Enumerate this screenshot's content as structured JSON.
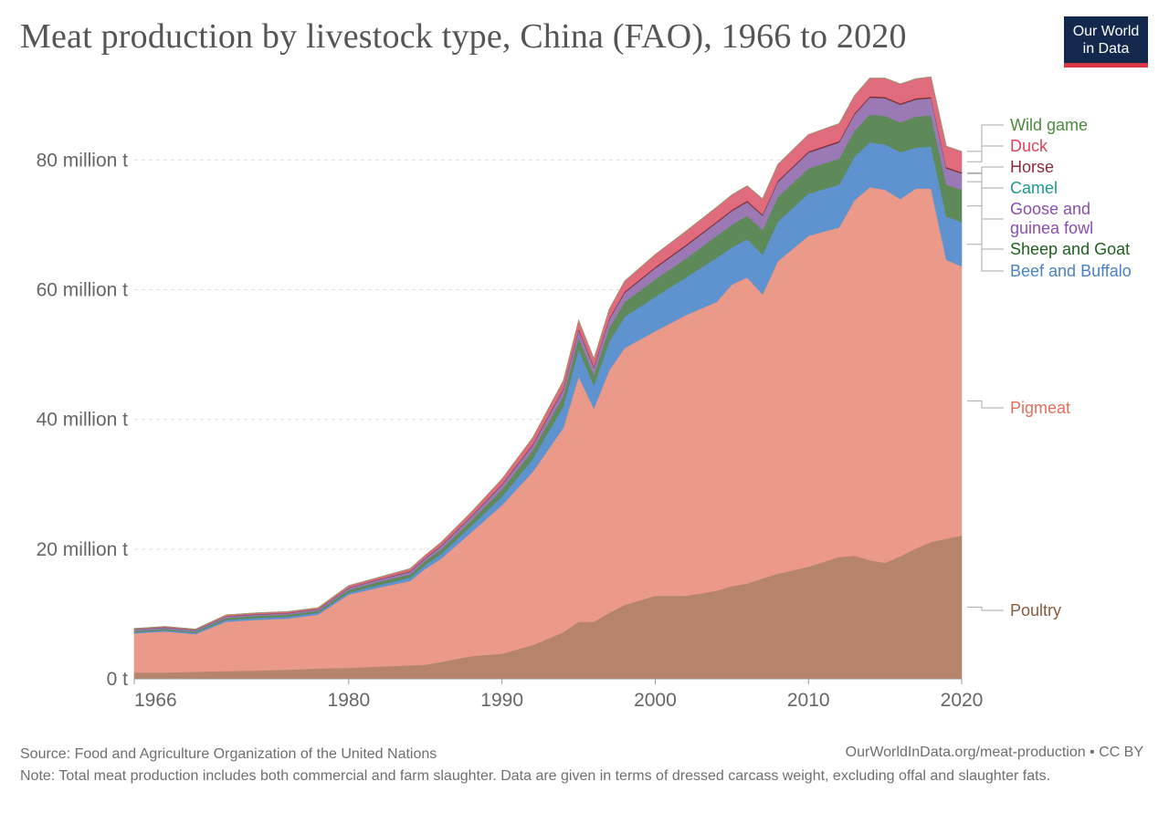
{
  "title": "Meat production by livestock type, China (FAO), 1966 to 2020",
  "logo": {
    "line1": "Our World",
    "line2": "in Data",
    "bg_color": "#12284c",
    "bar_color": "#dc3545"
  },
  "footer": {
    "source": "Source: Food and Agriculture Organization of the United Nations",
    "url": "OurWorldInData.org/meat-production • CC BY",
    "note": "Note: Total meat production includes both commercial and farm slaughter. Data are given in terms of dressed carcass weight, excluding offal and slaughter fats."
  },
  "chart_data": {
    "type": "area",
    "stacked": true,
    "title": "Meat production by livestock type, China (FAO), 1966 to 2020",
    "xlim": [
      1966,
      2020
    ],
    "ylim": [
      0,
      92
    ],
    "x_ticks": [
      1966,
      1980,
      1990,
      2000,
      2010,
      2020
    ],
    "y_ticks": [
      {
        "value": 0,
        "label": "0 t"
      },
      {
        "value": 20,
        "label": "20 million t"
      },
      {
        "value": 40,
        "label": "40 million t"
      },
      {
        "value": 60,
        "label": "60 million t"
      },
      {
        "value": 80,
        "label": "80 million t"
      }
    ],
    "grid": "horizontal",
    "legend": "right, labels at series ends",
    "x": [
      1966,
      1968,
      1970,
      1972,
      1974,
      1976,
      1978,
      1980,
      1982,
      1984,
      1985,
      1986,
      1988,
      1990,
      1992,
      1994,
      1995,
      1996,
      1997,
      1998,
      2000,
      2002,
      2004,
      2005,
      2006,
      2007,
      2008,
      2010,
      2012,
      2013,
      2014,
      2015,
      2016,
      2017,
      2018,
      2019,
      2020
    ],
    "series": [
      {
        "name": "Poultry",
        "color": "#b5846a",
        "label_color": "#8c5a3c",
        "values": [
          1.0,
          1.0,
          1.1,
          1.2,
          1.3,
          1.4,
          1.6,
          1.7,
          1.9,
          2.1,
          2.2,
          2.6,
          3.5,
          3.9,
          5.2,
          7.2,
          8.8,
          8.8,
          10.2,
          11.4,
          12.8,
          12.8,
          13.6,
          14.3,
          14.7,
          15.5,
          16.2,
          17.3,
          18.8,
          19.0,
          18.3,
          17.9,
          18.9,
          20.1,
          21.1,
          21.6,
          22.1
        ]
      },
      {
        "name": "Pigmeat",
        "color": "#eb9a8a",
        "label_color": "#e0705b",
        "values": [
          6.0,
          6.3,
          5.8,
          7.6,
          7.8,
          7.9,
          8.3,
          11.3,
          12.2,
          13.0,
          14.8,
          15.9,
          19.1,
          22.9,
          26.7,
          31.5,
          37.8,
          32.9,
          37.4,
          39.6,
          40.8,
          43.3,
          44.5,
          46.5,
          47.2,
          43.8,
          48.2,
          51.0,
          50.8,
          54.8,
          57.5,
          57.5,
          55.1,
          55.5,
          54.5,
          43.0,
          41.5
        ]
      },
      {
        "name": "Beef and Buffalo",
        "color": "#5f93cf",
        "label_color": "#4a82c5",
        "values": [
          0.2,
          0.2,
          0.2,
          0.3,
          0.3,
          0.3,
          0.3,
          0.3,
          0.4,
          0.5,
          0.6,
          0.7,
          1.0,
          1.3,
          2.0,
          3.3,
          4.2,
          3.6,
          4.4,
          4.8,
          5.3,
          5.8,
          6.8,
          5.7,
          5.9,
          6.1,
          6.1,
          6.5,
          6.6,
          6.7,
          6.9,
          7.0,
          7.2,
          6.3,
          6.5,
          6.7,
          6.8
        ]
      },
      {
        "name": "Sheep and Goat",
        "color": "#5e8a5a",
        "label_color": "#1f5f1f",
        "values": [
          0.2,
          0.2,
          0.2,
          0.3,
          0.3,
          0.3,
          0.3,
          0.4,
          0.5,
          0.5,
          0.6,
          0.7,
          0.8,
          1.1,
          1.3,
          1.6,
          1.8,
          1.6,
          2.1,
          2.3,
          2.7,
          2.9,
          3.4,
          3.5,
          3.6,
          3.8,
          3.8,
          3.9,
          4.0,
          4.0,
          4.3,
          4.4,
          4.6,
          4.8,
          4.8,
          4.9,
          5.0
        ]
      },
      {
        "name": "Goose and guinea fowl",
        "color": "#9a79b5",
        "label_color": "#8a4fb0",
        "values": [
          0.2,
          0.2,
          0.2,
          0.2,
          0.2,
          0.2,
          0.2,
          0.3,
          0.3,
          0.4,
          0.4,
          0.5,
          0.6,
          0.7,
          0.8,
          1.0,
          1.2,
          1.1,
          1.3,
          1.4,
          1.7,
          1.9,
          2.0,
          2.1,
          2.1,
          2.2,
          2.3,
          2.4,
          2.5,
          2.5,
          2.6,
          2.7,
          2.7,
          2.6,
          2.6,
          2.5,
          2.5
        ]
      },
      {
        "name": "Camel",
        "color": "#2a9d8f",
        "label_color": "#1a9a8f",
        "values": [
          0.02,
          0.02,
          0.02,
          0.02,
          0.02,
          0.02,
          0.02,
          0.02,
          0.02,
          0.02,
          0.02,
          0.02,
          0.02,
          0.02,
          0.02,
          0.02,
          0.02,
          0.02,
          0.02,
          0.02,
          0.02,
          0.02,
          0.02,
          0.02,
          0.02,
          0.02,
          0.02,
          0.02,
          0.02,
          0.02,
          0.02,
          0.02,
          0.02,
          0.02,
          0.02,
          0.02,
          0.02
        ]
      },
      {
        "name": "Horse",
        "color": "#8c2a3a",
        "label_color": "#8c2a3a",
        "values": [
          0.05,
          0.05,
          0.05,
          0.05,
          0.05,
          0.05,
          0.05,
          0.06,
          0.07,
          0.08,
          0.08,
          0.09,
          0.1,
          0.12,
          0.15,
          0.17,
          0.18,
          0.18,
          0.19,
          0.2,
          0.2,
          0.2,
          0.2,
          0.2,
          0.2,
          0.2,
          0.2,
          0.2,
          0.2,
          0.2,
          0.2,
          0.2,
          0.2,
          0.2,
          0.2,
          0.2,
          0.2
        ]
      },
      {
        "name": "Duck",
        "color": "#df6b7c",
        "label_color": "#e0415c",
        "values": [
          0.1,
          0.1,
          0.1,
          0.2,
          0.2,
          0.2,
          0.2,
          0.3,
          0.3,
          0.4,
          0.4,
          0.5,
          0.6,
          0.8,
          1.0,
          1.2,
          1.3,
          1.2,
          1.4,
          1.6,
          1.9,
          2.1,
          2.2,
          2.3,
          2.3,
          2.4,
          2.5,
          2.6,
          2.7,
          2.7,
          2.8,
          2.9,
          3.0,
          3.0,
          3.1,
          3.2,
          3.2
        ]
      },
      {
        "name": "Wild game",
        "color": "#7da56a",
        "label_color": "#4d8a3e",
        "values": [
          0.01,
          0.01,
          0.01,
          0.01,
          0.01,
          0.01,
          0.01,
          0.01,
          0.01,
          0.01,
          0.01,
          0.01,
          0.01,
          0.01,
          0.01,
          0.01,
          0.01,
          0.01,
          0.01,
          0.01,
          0.01,
          0.01,
          0.01,
          0.01,
          0.01,
          0.01,
          0.01,
          0.01,
          0.01,
          0.01,
          0.01,
          0.01,
          0.01,
          0.01,
          0.01,
          0.01,
          0.01
        ]
      }
    ],
    "legend_labels": [
      {
        "series": "Wild game",
        "lines": [
          "Wild game"
        ]
      },
      {
        "series": "Duck",
        "lines": [
          "Duck"
        ]
      },
      {
        "series": "Horse",
        "lines": [
          "Horse"
        ]
      },
      {
        "series": "Camel",
        "lines": [
          "Camel"
        ]
      },
      {
        "series": "Goose and guinea fowl",
        "lines": [
          "Goose and",
          "guinea fowl"
        ]
      },
      {
        "series": "Sheep and Goat",
        "lines": [
          "Sheep and Goat"
        ]
      },
      {
        "series": "Beef and Buffalo",
        "lines": [
          "Beef and Buffalo"
        ]
      },
      {
        "series": "Pigmeat",
        "lines": [
          "Pigmeat"
        ]
      },
      {
        "series": "Poultry",
        "lines": [
          "Poultry"
        ]
      }
    ]
  }
}
